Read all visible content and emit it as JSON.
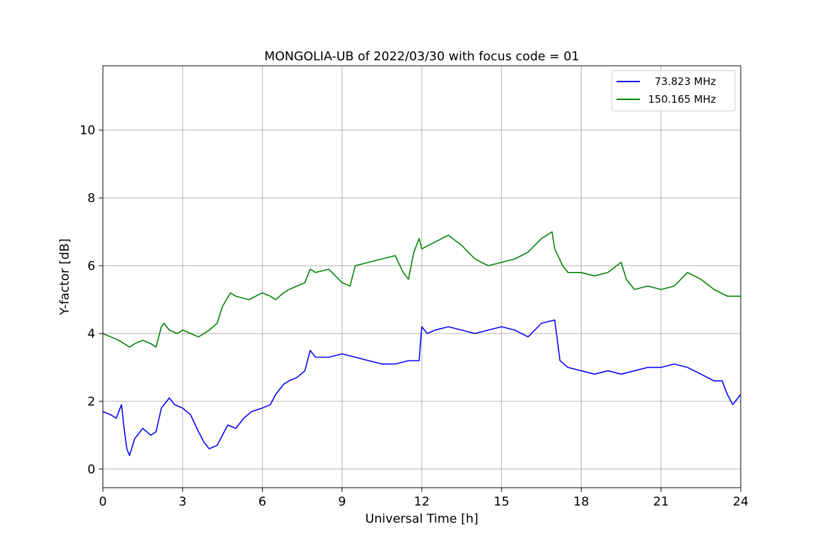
{
  "chart_data": {
    "type": "line",
    "title": "MONGOLIA-UB of 2022/03/30 with focus code = 01",
    "xlabel": "Universal Time [h]",
    "ylabel": "Y-factor [dB]",
    "xlim": [
      0,
      24
    ],
    "ylim": [
      -0.55,
      11.9
    ],
    "xticks": [
      0,
      3,
      6,
      9,
      12,
      15,
      18,
      21,
      24
    ],
    "yticks": [
      0,
      2,
      4,
      6,
      8,
      10
    ],
    "grid": true,
    "legend_position": "top-right",
    "series": [
      {
        "name": "  73.823 MHz",
        "color": "#0000ff",
        "x": [
          0,
          0.3,
          0.5,
          0.6,
          0.7,
          0.8,
          0.9,
          1.0,
          1.2,
          1.5,
          1.8,
          2.0,
          2.2,
          2.5,
          2.7,
          3.0,
          3.3,
          3.6,
          3.8,
          4.0,
          4.3,
          4.5,
          4.7,
          5.0,
          5.3,
          5.6,
          6.0,
          6.3,
          6.5,
          6.8,
          7.0,
          7.3,
          7.6,
          7.8,
          8.0,
          8.5,
          9.0,
          9.5,
          10.0,
          10.5,
          11.0,
          11.5,
          11.9,
          12.0,
          12.2,
          12.5,
          13.0,
          13.5,
          14.0,
          14.5,
          15.0,
          15.5,
          16.0,
          16.5,
          17.0,
          17.2,
          17.5,
          18.0,
          18.5,
          19.0,
          19.5,
          20.0,
          20.5,
          21.0,
          21.5,
          22.0,
          22.5,
          23.0,
          23.3,
          23.5,
          23.7,
          24.0
        ],
        "y": [
          1.7,
          1.6,
          1.5,
          1.7,
          1.9,
          1.2,
          0.6,
          0.4,
          0.9,
          1.2,
          1.0,
          1.1,
          1.8,
          2.1,
          1.9,
          1.8,
          1.6,
          1.1,
          0.8,
          0.6,
          0.7,
          1.0,
          1.3,
          1.2,
          1.5,
          1.7,
          1.8,
          1.9,
          2.2,
          2.5,
          2.6,
          2.7,
          2.9,
          3.5,
          3.3,
          3.3,
          3.4,
          3.3,
          3.2,
          3.1,
          3.1,
          3.2,
          3.2,
          4.2,
          4.0,
          4.1,
          4.2,
          4.1,
          4.0,
          4.1,
          4.2,
          4.1,
          3.9,
          4.3,
          4.4,
          3.2,
          3.0,
          2.9,
          2.8,
          2.9,
          2.8,
          2.9,
          3.0,
          3.0,
          3.1,
          3.0,
          2.8,
          2.6,
          2.6,
          2.2,
          1.9,
          2.2
        ]
      },
      {
        "name": "150.165 MHz",
        "color": "#008000",
        "x": [
          0,
          0.3,
          0.6,
          0.8,
          1.0,
          1.2,
          1.5,
          1.8,
          2.0,
          2.2,
          2.3,
          2.5,
          2.8,
          3.0,
          3.3,
          3.6,
          4.0,
          4.3,
          4.5,
          4.8,
          5.0,
          5.5,
          6.0,
          6.3,
          6.5,
          6.8,
          7.0,
          7.3,
          7.6,
          7.8,
          8.0,
          8.5,
          9.0,
          9.3,
          9.5,
          10.0,
          10.5,
          11.0,
          11.3,
          11.5,
          11.7,
          11.8,
          11.9,
          12.0,
          12.5,
          13.0,
          13.5,
          14.0,
          14.5,
          15.0,
          15.5,
          16.0,
          16.5,
          16.9,
          17.0,
          17.3,
          17.5,
          18.0,
          18.5,
          19.0,
          19.5,
          19.7,
          20.0,
          20.5,
          21.0,
          21.5,
          22.0,
          22.5,
          23.0,
          23.5,
          24.0
        ],
        "y": [
          4.0,
          3.9,
          3.8,
          3.7,
          3.6,
          3.7,
          3.8,
          3.7,
          3.6,
          4.2,
          4.3,
          4.1,
          4.0,
          4.1,
          4.0,
          3.9,
          4.1,
          4.3,
          4.8,
          5.2,
          5.1,
          5.0,
          5.2,
          5.1,
          5.0,
          5.2,
          5.3,
          5.4,
          5.5,
          5.9,
          5.8,
          5.9,
          5.5,
          5.4,
          6.0,
          6.1,
          6.2,
          6.3,
          5.8,
          5.6,
          6.4,
          6.6,
          6.8,
          6.5,
          6.7,
          6.9,
          6.6,
          6.2,
          6.0,
          6.1,
          6.2,
          6.4,
          6.8,
          7.0,
          6.5,
          6.0,
          5.8,
          5.8,
          5.7,
          5.8,
          6.1,
          5.6,
          5.3,
          5.4,
          5.3,
          5.4,
          5.8,
          5.6,
          5.3,
          5.1,
          5.1
        ]
      }
    ]
  }
}
